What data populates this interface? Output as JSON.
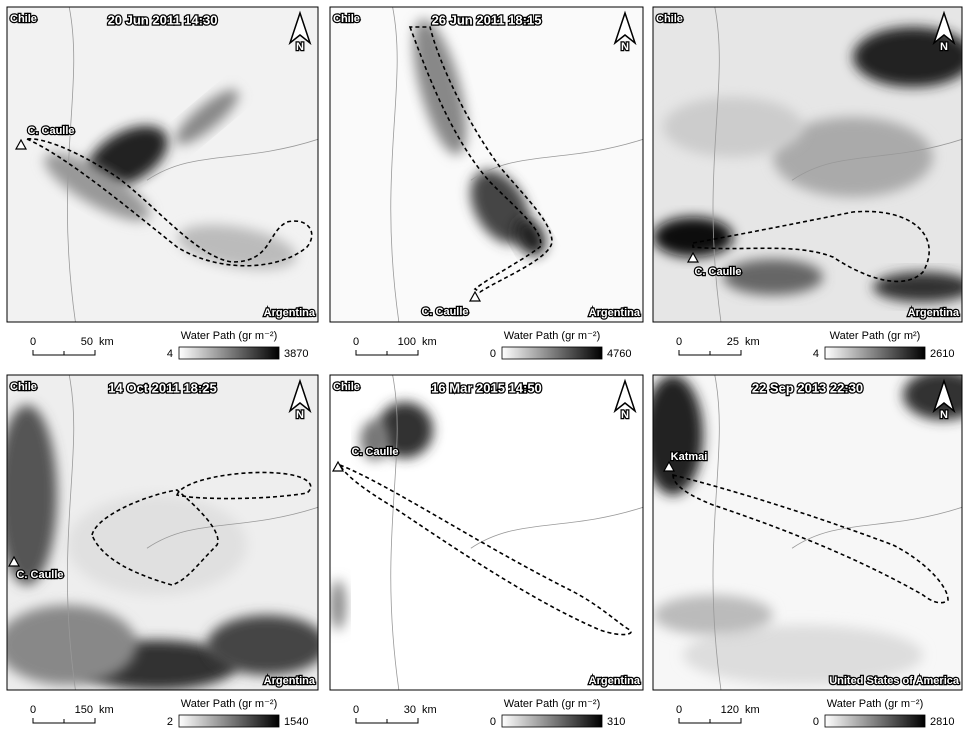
{
  "north_label": "N",
  "panels": [
    {
      "date": "20 Jun 2011 14:30",
      "top_left": "Chile",
      "bottom_right": "Argentina",
      "volcano": "C. Caulle",
      "scale": {
        "start": "0",
        "end": "50",
        "unit": "km"
      },
      "colorbar": {
        "label": "Water Path (gr m⁻²)",
        "min": 4,
        "max": 3870
      }
    },
    {
      "date": "26 Jun 2011 18:15",
      "top_left": "Chile",
      "bottom_right": "Argentina",
      "volcano": "C. Caulle",
      "scale": {
        "start": "0",
        "end": "100",
        "unit": "km"
      },
      "colorbar": {
        "label": "Water Path (gr m⁻²)",
        "min": 0,
        "max": 4760
      }
    },
    {
      "date": "",
      "top_left": "Chile",
      "bottom_right": "Argentina",
      "volcano": "C. Caulle",
      "scale": {
        "start": "0",
        "end": "25",
        "unit": "km"
      },
      "colorbar": {
        "label": "Water Path (gr m²)",
        "min": 4,
        "max": 2610
      }
    },
    {
      "date": "14 Oct 2011 18:25",
      "top_left": "Chile",
      "bottom_right": "Argentina",
      "volcano": "C. Caulle",
      "scale": {
        "start": "0",
        "end": "150",
        "unit": "km"
      },
      "colorbar": {
        "label": "Water Path (gr m⁻²)",
        "min": 2,
        "max": 1540
      }
    },
    {
      "date": "16 Mar 2015 14:50",
      "top_left": "Chile",
      "bottom_right": "Argentina",
      "volcano": "C. Caulle",
      "scale": {
        "start": "0",
        "end": "30",
        "unit": "km"
      },
      "colorbar": {
        "label": "Water Path (gr m⁻²)",
        "min": 0,
        "max": 310
      }
    },
    {
      "date": "22 Sep 2013 22:30",
      "top_left": "",
      "bottom_right": "United States of America",
      "volcano": "Katmai",
      "scale": {
        "start": "0",
        "end": "120",
        "unit": "km"
      },
      "colorbar": {
        "label": "Water Path (gr m⁻²)",
        "min": 0,
        "max": 2810
      }
    }
  ]
}
